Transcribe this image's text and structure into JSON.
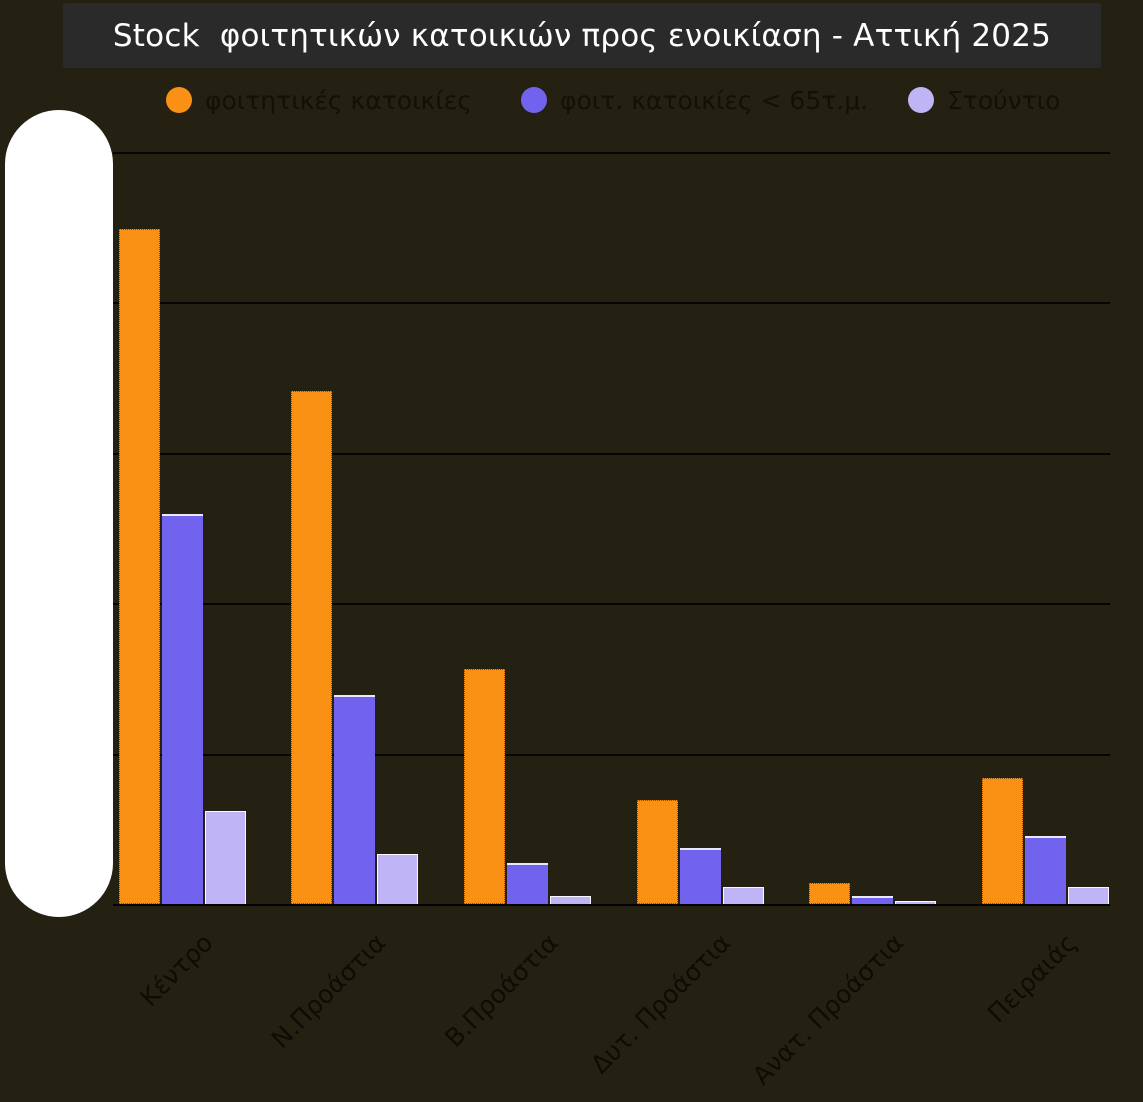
{
  "header": {
    "title": "Stock  φοιτητικών κατοικιών προς ενοικίαση - Αττική 2025"
  },
  "legend": {
    "position": "top",
    "items": [
      {
        "label": "φοιτητικές κατοικίες",
        "color": "#fb9114"
      },
      {
        "label": "φοιτ. κατοικίες < 65τ.μ.",
        "color": "#7163ed"
      },
      {
        "label": "Στούντιο",
        "color": "#bfb5f6"
      }
    ]
  },
  "chart_data": {
    "type": "bar",
    "title": "Stock  φοιτητικών κατοικιών προς ενοικίαση - Αττική 2025",
    "categories": [
      "Κέντρο",
      "Ν.Προάστια",
      "Β.Προάστια",
      "Δυτ. Προάστια",
      "Ανατ. Προάστια",
      "Πειραιάς"
    ],
    "series": [
      {
        "name": "φοιτητικές κατοικίες",
        "color": "#fb9114",
        "values": [
          4.49,
          3.41,
          1.56,
          0.69,
          0.14,
          0.84
        ]
      },
      {
        "name": "φοιτ. κατοικίες < 65τ.μ.",
        "color": "#7163ed",
        "values": [
          2.59,
          1.39,
          0.27,
          0.37,
          0.05,
          0.45
        ]
      },
      {
        "name": "Στούντιο",
        "color": "#bfb5f6",
        "values": [
          0.62,
          0.33,
          0.05,
          0.11,
          0.02,
          0.11
        ]
      }
    ],
    "xlabel": "",
    "ylabel": "",
    "ylim": [
      0,
      5
    ],
    "grid": "horizontal gridlines at 1,2,3,4,5 units",
    "legend_position": "top",
    "value_note": "y-axis tick labels are hidden behind a white rounded overlay; values are estimated in gridline units (1 unit = one gridline interval)"
  },
  "overlay": {
    "description": "white rounded pill covering the y-axis tick labels",
    "color": "#ffffff"
  },
  "colors": {
    "background": "#252112",
    "title_bar": "#2a2a2a",
    "title_text": "#ffffff",
    "legend_text": "#131005",
    "axis_label_text": "#0e0c04",
    "gridline": "#060503",
    "series_orange": "#fb9114",
    "series_purple": "#7163ed",
    "series_lavender": "#bfb5f6"
  }
}
